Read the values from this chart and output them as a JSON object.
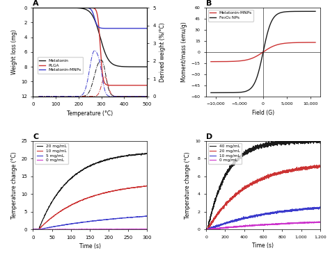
{
  "A": {
    "title": "A",
    "xlabel": "Temperature (°C)",
    "ylabel_left": "Weight loss (mg)",
    "ylabel_right": "Derived weight (%/°C)",
    "xlim": [
      0,
      500
    ],
    "ylim_left": [
      12,
      0
    ],
    "ylim_right": [
      0,
      5
    ],
    "legend": [
      "Melatonin",
      "PLGA",
      "Melatonin-MNPs"
    ],
    "colors_solid": [
      "#1a1a1a",
      "#cc3333",
      "#3b3bcc"
    ],
    "colors_dash": [
      "#1a1a1a",
      "#cc3333",
      "#3b3bcc"
    ]
  },
  "B": {
    "title": "B",
    "xlabel": "Field (G)",
    "ylabel": "Moment/mass (emu/g)",
    "xlim": [
      -12000,
      12000
    ],
    "ylim": [
      -60,
      60
    ],
    "legend": [
      "Melatonin-MNPs",
      "Fe₃O₄ NPs"
    ],
    "colors": [
      "#cc3333",
      "#1a1a1a"
    ]
  },
  "C": {
    "title": "C",
    "xlabel": "Time (s)",
    "ylabel": "Temperature change (°C)",
    "xlim": [
      0,
      300
    ],
    "ylim": [
      0,
      25
    ],
    "yticks": [
      0,
      5,
      10,
      15,
      20,
      25
    ],
    "legend": [
      "20 mg/mL",
      "10 mg/mL",
      "5 mg/mL",
      "0 mg/mL"
    ],
    "colors": [
      "#1a1a1a",
      "#cc3333",
      "#3b3bcc",
      "#cc33cc"
    ]
  },
  "D": {
    "title": "D",
    "xlabel": "Time (s)",
    "ylabel": "Temperature change (°C)",
    "xlim": [
      0,
      1200
    ],
    "ylim": [
      0,
      10
    ],
    "yticks": [
      0,
      2,
      4,
      6,
      8,
      10
    ],
    "legend": [
      "40 mg/mL",
      "20 mg/mL",
      "10 mg/mL",
      "0 mg/mL"
    ],
    "colors": [
      "#1a1a1a",
      "#cc3333",
      "#3b3bcc",
      "#cc33cc"
    ]
  }
}
